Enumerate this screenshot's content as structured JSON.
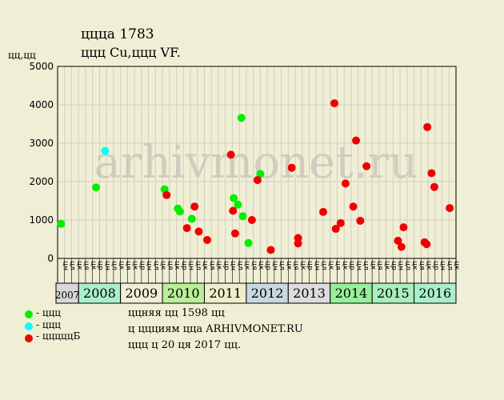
{
  "title_line1": "ццца 1783",
  "title_line2": "ццц Cu,ццц VF.",
  "y_unit": "цц,цц",
  "watermark": "arhivmonet.ru",
  "legend": [
    {
      "label": "- ццц",
      "color": "#00ee00"
    },
    {
      "label": "- ццц",
      "color": "#00ffff"
    },
    {
      "label": "- цццццБ",
      "color": "#ee0000"
    }
  ],
  "info_lines": [
    "ццняя цц 1598 цц",
    "ц ццциям цца ARHIVMONET.RU",
    "ццц ц 20 ця 2017 цц."
  ],
  "chart_data": {
    "type": "scatter",
    "title": "ццца 1783",
    "subtitle": "ццц Cu,ццц VF.",
    "ylabel": "цц,цц",
    "ylim": [
      0,
      5000
    ],
    "yticks": [
      0,
      1000,
      2000,
      3000,
      4000,
      5000
    ],
    "grid": true,
    "legend_position": "bottom-left",
    "month_labels": [
      "ця",
      "цк",
      "цр",
      "цн",
      "цл",
      "цк"
    ],
    "years": [
      {
        "label": "2007",
        "color": "#d8d8d8"
      },
      {
        "label": "2008",
        "color": "#aaeecc"
      },
      {
        "label": "2009",
        "color": "#f0eed4"
      },
      {
        "label": "2010",
        "color": "#bbee99"
      },
      {
        "label": "2011",
        "color": "#eeeecc"
      },
      {
        "label": "2012",
        "color": "#c8d8e0"
      },
      {
        "label": "2013",
        "color": "#dcdcdc"
      },
      {
        "label": "2014",
        "color": "#99ee99"
      },
      {
        "label": "2015",
        "color": "#aaeebb"
      },
      {
        "label": "2016",
        "color": "#aaeecc"
      }
    ],
    "series": [
      {
        "name": "ццц",
        "color": "#00ee00",
        "points": [
          {
            "x": 0.5,
            "y": 900
          },
          {
            "x": 5.5,
            "y": 1850
          },
          {
            "x": 15.3,
            "y": 1800
          },
          {
            "x": 17.2,
            "y": 1300
          },
          {
            "x": 17.5,
            "y": 1220
          },
          {
            "x": 19.2,
            "y": 1030
          },
          {
            "x": 25.2,
            "y": 1570
          },
          {
            "x": 25.8,
            "y": 1400
          },
          {
            "x": 26.3,
            "y": 3660
          },
          {
            "x": 26.5,
            "y": 1100
          },
          {
            "x": 27.3,
            "y": 400
          },
          {
            "x": 29.0,
            "y": 2200
          }
        ]
      },
      {
        "name": "ццц",
        "color": "#00ffff",
        "points": [
          {
            "x": 6.8,
            "y": 2800
          }
        ]
      },
      {
        "name": "цццццБ",
        "color": "#ee0000",
        "points": [
          {
            "x": 15.6,
            "y": 1650
          },
          {
            "x": 18.5,
            "y": 790
          },
          {
            "x": 19.6,
            "y": 1350
          },
          {
            "x": 20.2,
            "y": 700
          },
          {
            "x": 21.4,
            "y": 480
          },
          {
            "x": 24.8,
            "y": 2700
          },
          {
            "x": 25.1,
            "y": 1240
          },
          {
            "x": 25.4,
            "y": 650
          },
          {
            "x": 27.8,
            "y": 1000
          },
          {
            "x": 28.6,
            "y": 2040
          },
          {
            "x": 30.5,
            "y": 220
          },
          {
            "x": 33.5,
            "y": 2360
          },
          {
            "x": 34.4,
            "y": 530
          },
          {
            "x": 34.4,
            "y": 390
          },
          {
            "x": 38.0,
            "y": 1210
          },
          {
            "x": 39.6,
            "y": 4040
          },
          {
            "x": 39.8,
            "y": 770
          },
          {
            "x": 40.5,
            "y": 920
          },
          {
            "x": 41.2,
            "y": 1950
          },
          {
            "x": 42.3,
            "y": 1350
          },
          {
            "x": 42.7,
            "y": 3070
          },
          {
            "x": 43.3,
            "y": 980
          },
          {
            "x": 44.2,
            "y": 2400
          },
          {
            "x": 48.7,
            "y": 460
          },
          {
            "x": 49.2,
            "y": 300
          },
          {
            "x": 49.5,
            "y": 810
          },
          {
            "x": 52.5,
            "y": 420
          },
          {
            "x": 52.8,
            "y": 370
          },
          {
            "x": 52.9,
            "y": 3420
          },
          {
            "x": 53.5,
            "y": 2220
          },
          {
            "x": 53.9,
            "y": 1860
          },
          {
            "x": 56.1,
            "y": 1310
          }
        ]
      }
    ]
  }
}
